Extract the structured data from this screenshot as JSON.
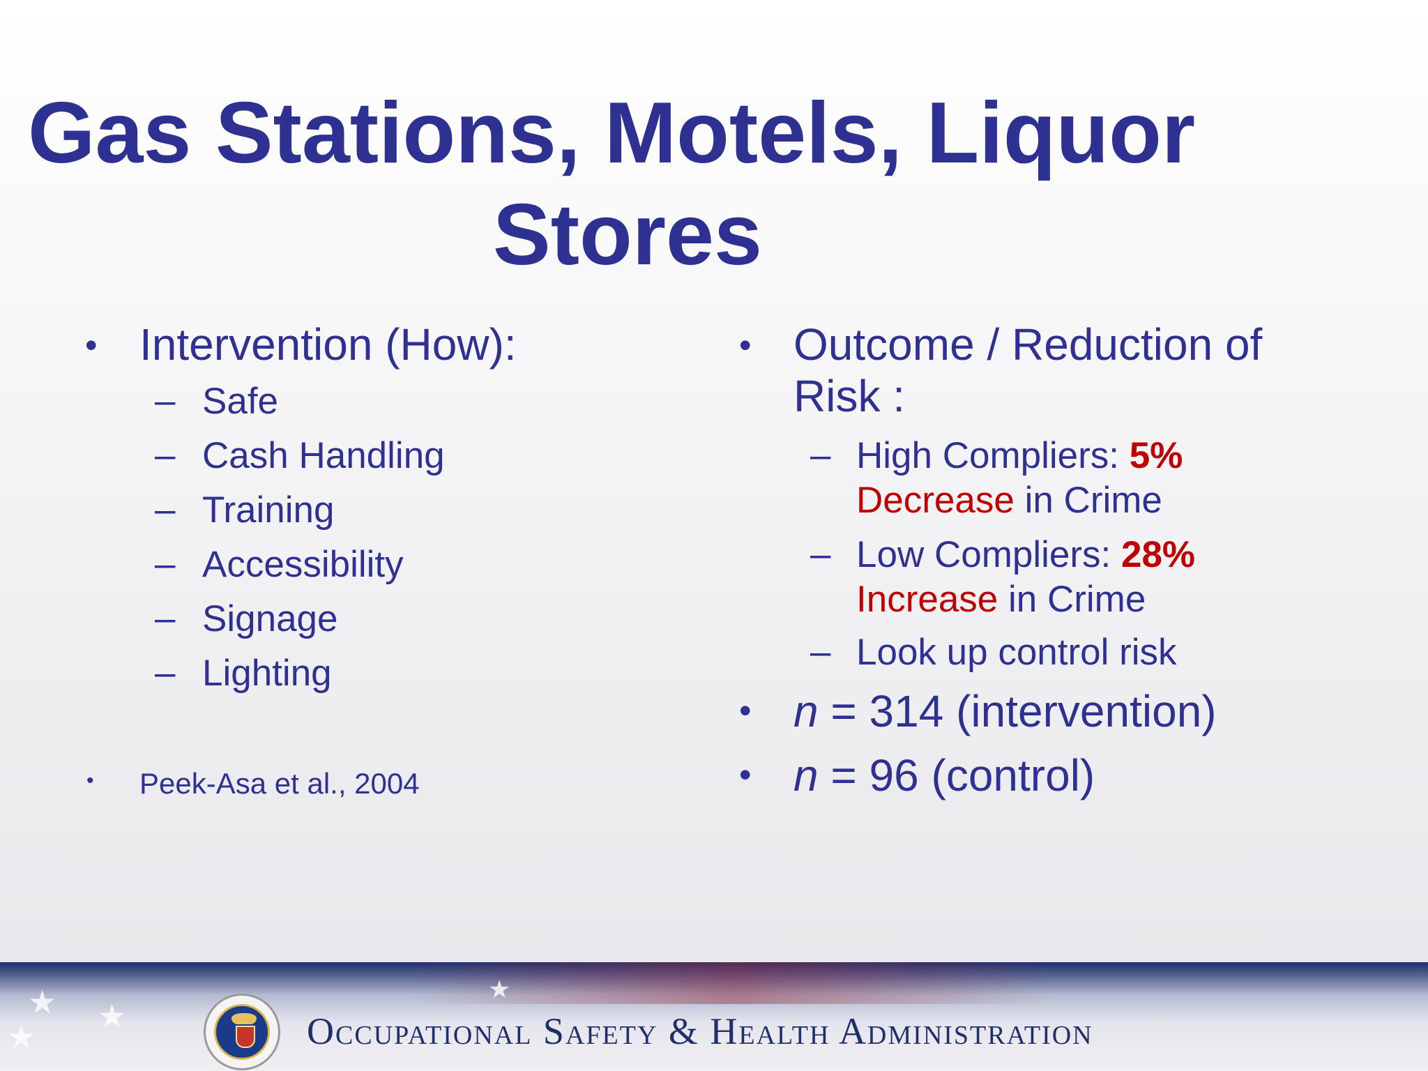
{
  "title": {
    "line1": "Gas Stations, Motels, Liquor",
    "line2": "Stores"
  },
  "left": {
    "heading_bullet": "•",
    "heading": "Intervention (How):",
    "dash": "–",
    "items": [
      "Safe",
      "Cash Handling",
      "Training",
      "Accessibility",
      "Signage",
      "Lighting"
    ],
    "citation_bullet": "•",
    "citation": "Peek-Asa et al., 2004"
  },
  "right": {
    "heading_bullet": "•",
    "heading_line1": "Outcome / Reduction of",
    "heading_line2": "Risk :",
    "dash": "–",
    "high": {
      "label": "High Compliers: ",
      "pct": "5%",
      "word": "Decrease",
      "rest": " in Crime"
    },
    "low": {
      "label": "Low Compliers: ",
      "pct": "28%",
      "word": "Increase",
      "rest": " in Crime"
    },
    "lookup": "Look up control risk",
    "n1": {
      "var": "n",
      "text": " = 314 (intervention)"
    },
    "n2": {
      "var": "n",
      "text": " = 96 (control)"
    }
  },
  "footer": {
    "agency": "Occupational Safety & Health Administration"
  },
  "colors": {
    "title_blue": "#2e3192",
    "accent_red": "#c00000",
    "footer_navy": "#1f2f6a"
  }
}
